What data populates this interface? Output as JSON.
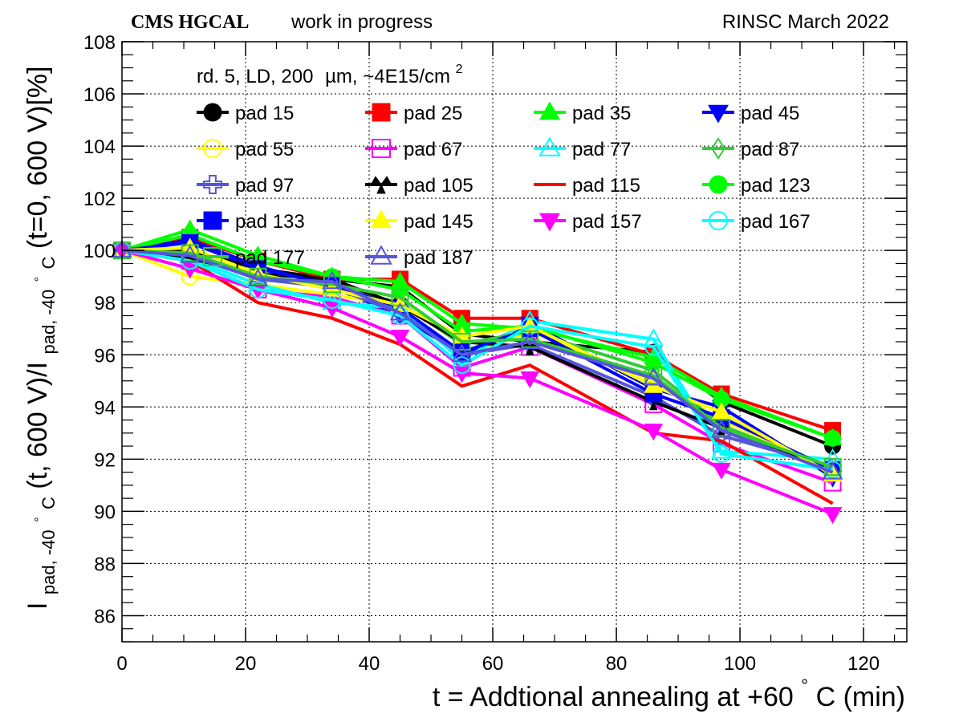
{
  "header": {
    "experiment": "CMS HGCAL",
    "status": "work in progress",
    "right": "RINSC March 2022"
  },
  "legend": {
    "header": "rd. 5, LD, 200",
    "header_unit": "µm, ~4E15/cm",
    "header_sup": "2",
    "entries": [
      "pad 15",
      "pad 25",
      "pad 35",
      "pad 45",
      "pad 55",
      "pad 67",
      "pad 77",
      "pad 87",
      "pad 97",
      "pad 105",
      "pad 115",
      "pad 123",
      "pad 133",
      "pad 145",
      "pad 157",
      "pad 167",
      "pad 177",
      "pad 187"
    ]
  },
  "axes": {
    "x_ticks": [
      "0",
      "20",
      "40",
      "60",
      "80",
      "100",
      "120"
    ],
    "y_ticks": [
      "86",
      "88",
      "90",
      "92",
      "94",
      "96",
      "98",
      "100",
      "102",
      "104",
      "106",
      "108"
    ],
    "xlabel_main": "t = Addtional annealing at +60",
    "xlabel_deg": "°",
    "xlabel_tail": " C (min)",
    "ylabel": {
      "I1": "I",
      "sub1": "pad, -40",
      "deg1": "°",
      "C1": "C",
      "mid": "(t, 600 V)/I",
      "sub2": "pad, -40",
      "deg2": "°",
      "C2": "C",
      "end": "(t=0, 600 V)[%]"
    }
  },
  "chart_data": {
    "type": "line",
    "title": "",
    "xlim": [
      0,
      127
    ],
    "ylim": [
      85,
      108
    ],
    "grid": true,
    "legend_position": "top-left",
    "x": [
      0,
      11,
      22,
      34,
      45,
      55,
      66,
      86,
      97,
      115
    ],
    "series": [
      {
        "name": "pad 15",
        "color": "#000000",
        "marker": "circle-filled",
        "values": [
          100,
          100.0,
          99.3,
          98.9,
          98.6,
          96.8,
          96.5,
          96.1,
          94.2,
          92.5
        ]
      },
      {
        "name": "pad 25",
        "color": "#ff0000",
        "marker": "square-filled",
        "values": [
          100,
          100.5,
          99.6,
          98.9,
          98.9,
          97.4,
          97.4,
          96.0,
          94.5,
          93.1
        ]
      },
      {
        "name": "pad 35",
        "color": "#00ff00",
        "marker": "triangle-up-filled",
        "values": [
          100,
          100.8,
          99.8,
          99.0,
          98.8,
          97.2,
          97.0,
          95.9,
          94.4,
          92.8
        ]
      },
      {
        "name": "pad 45",
        "color": "#0000ff",
        "marker": "triangle-down-filled",
        "values": [
          100,
          100.4,
          99.4,
          98.6,
          97.5,
          96.0,
          97.2,
          94.7,
          94.0,
          91.3
        ]
      },
      {
        "name": "pad 55",
        "color": "#ffff00",
        "marker": "circle-open",
        "values": [
          100,
          99.0,
          98.7,
          98.3,
          97.9,
          95.9,
          96.9,
          95.0,
          93.5,
          91.6
        ]
      },
      {
        "name": "pad 67",
        "color": "#ff00ff",
        "marker": "square-open",
        "values": [
          100,
          99.6,
          98.5,
          98.2,
          97.5,
          95.5,
          96.3,
          94.1,
          92.6,
          91.1
        ]
      },
      {
        "name": "pad 77",
        "color": "#00ffff",
        "marker": "triangle-up-open",
        "values": [
          100,
          99.7,
          98.7,
          98.0,
          97.8,
          95.8,
          97.3,
          96.6,
          92.3,
          92.0
        ]
      },
      {
        "name": "pad 87",
        "color": "#33cc33",
        "marker": "diamond-open",
        "values": [
          100,
          99.9,
          99.0,
          98.6,
          98.0,
          96.4,
          96.9,
          95.4,
          93.3,
          91.6
        ]
      },
      {
        "name": "pad 97",
        "color": "#5555dd",
        "marker": "cross-open",
        "values": [
          100,
          99.8,
          98.9,
          98.6,
          97.6,
          96.0,
          96.4,
          94.4,
          92.9,
          91.7
        ]
      },
      {
        "name": "pad 105",
        "color": "#000000",
        "marker": "tristar",
        "values": [
          100,
          99.7,
          99.1,
          98.9,
          97.9,
          96.5,
          96.3,
          94.2,
          93.2,
          91.5
        ]
      },
      {
        "name": "pad 115",
        "color": "#ff0000",
        "marker": "none",
        "values": [
          100,
          99.6,
          98.0,
          97.4,
          96.4,
          94.8,
          95.6,
          93.0,
          92.7,
          90.3
        ]
      },
      {
        "name": "pad 123",
        "color": "#00ff00",
        "marker": "circle-filled",
        "values": [
          100,
          100.6,
          99.6,
          99.0,
          98.5,
          96.9,
          97.1,
          95.7,
          94.3,
          92.8
        ]
      },
      {
        "name": "pad 133",
        "color": "#0000ff",
        "marker": "square-filled",
        "values": [
          100,
          100.3,
          99.3,
          98.7,
          97.8,
          96.1,
          97.0,
          94.5,
          93.6,
          91.6
        ]
      },
      {
        "name": "pad 145",
        "color": "#ffff00",
        "marker": "triangle-up-filled",
        "values": [
          100,
          100.1,
          99.1,
          98.5,
          97.9,
          96.7,
          97.1,
          94.8,
          93.8,
          91.4
        ]
      },
      {
        "name": "pad 157",
        "color": "#ff00ff",
        "marker": "triangle-down-filled",
        "values": [
          100,
          99.3,
          98.5,
          97.8,
          96.7,
          95.3,
          95.1,
          93.1,
          91.6,
          89.9
        ]
      },
      {
        "name": "pad 167",
        "color": "#00ffff",
        "marker": "circle-open",
        "values": [
          100,
          99.6,
          98.5,
          98.1,
          97.5,
          95.6,
          97.1,
          96.3,
          92.2,
          91.6
        ]
      },
      {
        "name": "pad 177",
        "color": "#33cc33",
        "marker": "square-open",
        "values": [
          100,
          99.9,
          99.0,
          98.7,
          98.2,
          96.5,
          96.6,
          95.2,
          93.2,
          91.7
        ]
      },
      {
        "name": "pad 187",
        "color": "#5555dd",
        "marker": "triangle-up-open",
        "values": [
          100,
          99.8,
          98.9,
          98.8,
          97.6,
          96.0,
          96.5,
          95.1,
          93.1,
          91.5
        ]
      }
    ]
  }
}
